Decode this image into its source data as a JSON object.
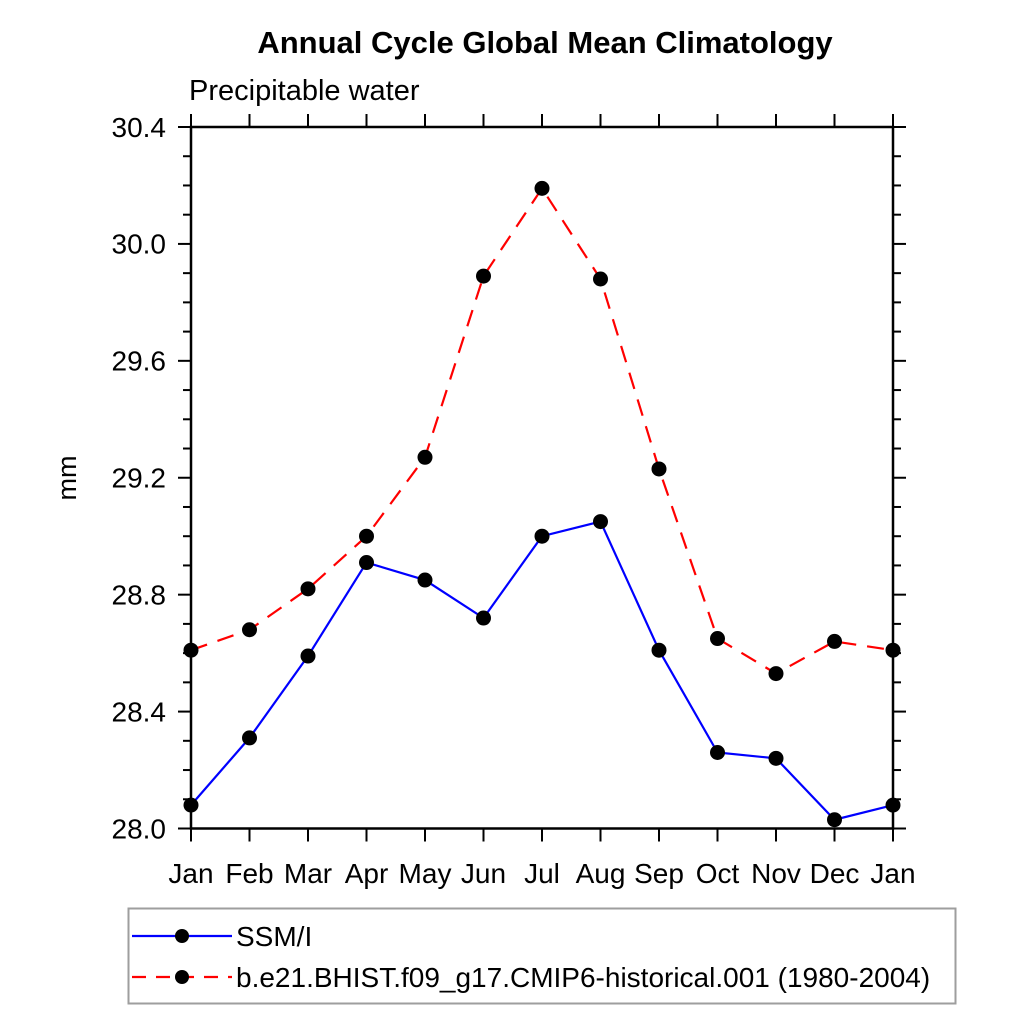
{
  "header": {
    "title": "Annual Cycle Global Mean Climatology",
    "subtitle": "Precipitable water"
  },
  "chart_data": {
    "type": "line",
    "title": "Annual Cycle Global Mean Climatology",
    "subtitle": "Precipitable water",
    "xlabel": "",
    "ylabel": "mm",
    "x_ticklabels": [
      "Jan",
      "Feb",
      "Mar",
      "Apr",
      "May",
      "Jun",
      "Jul",
      "Aug",
      "Sep",
      "Oct",
      "Nov",
      "Dec",
      "Jan"
    ],
    "ylim": [
      28.0,
      30.4
    ],
    "ytick_major_step": 0.4,
    "ytick_minor_step": 0.1,
    "grid": false,
    "legend_position": "bottom-left-box",
    "series": [
      {
        "name": "SSM/I",
        "color": "#0000ff",
        "line": "solid",
        "marker": "circle",
        "marker_color": "#000000",
        "values": [
          28.08,
          28.31,
          28.59,
          28.91,
          28.85,
          28.72,
          29.0,
          29.05,
          28.61,
          28.26,
          28.24,
          28.03,
          28.08
        ]
      },
      {
        "name": "b.e21.BHIST.f09_g17.CMIP6-historical.001 (1980-2004)",
        "color": "#ff0000",
        "line": "dashed",
        "marker": "circle",
        "marker_color": "#000000",
        "values": [
          28.61,
          28.68,
          28.82,
          29.0,
          29.27,
          29.89,
          30.19,
          29.88,
          29.23,
          28.65,
          28.53,
          28.64,
          28.61
        ]
      }
    ],
    "colors": {
      "axis": "#000000",
      "tick_label": "#000000",
      "legend_border": "#9e9e9e"
    }
  }
}
